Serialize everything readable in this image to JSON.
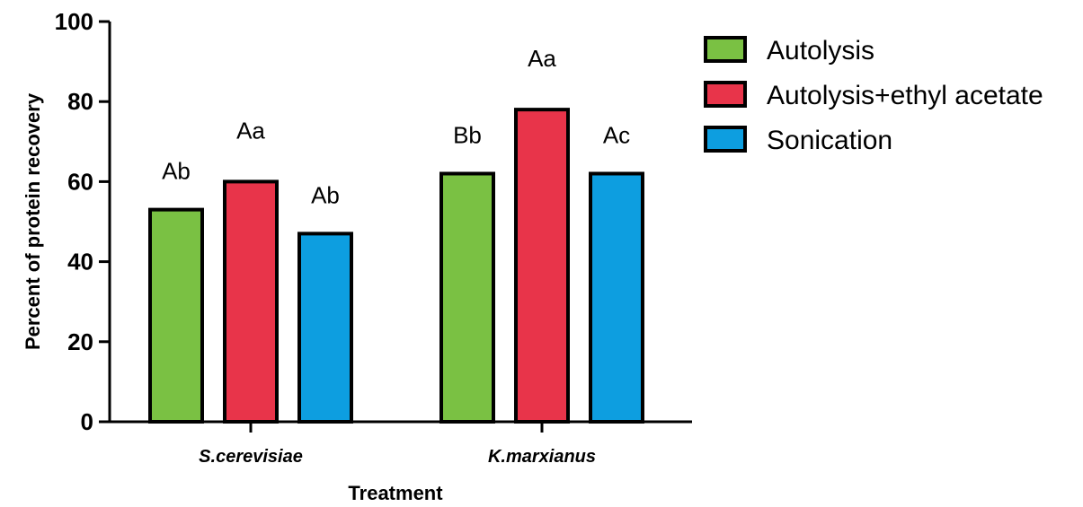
{
  "chart_data": {
    "type": "bar",
    "xlabel": "Treatment",
    "ylabel": "Percent of protein recovery",
    "ylim": [
      0,
      100
    ],
    "yticks": [
      0,
      20,
      40,
      60,
      80,
      100
    ],
    "categories": [
      "S.cerevisiae",
      "K.marxianus"
    ],
    "series": [
      {
        "name": "Autolysis",
        "color": "#7ac143",
        "values": [
          53,
          62
        ],
        "labels": [
          "Ab",
          "Bb"
        ]
      },
      {
        "name": "Autolysis+ethyl acetate",
        "color": "#e8344a",
        "values": [
          60,
          78
        ],
        "labels": [
          "Aa",
          "Aa"
        ]
      },
      {
        "name": "Sonication",
        "color": "#0d9ee0",
        "values": [
          47,
          62
        ],
        "labels": [
          "Ab",
          "Ac"
        ]
      }
    ],
    "legend_position": "top-right",
    "grid": false
  }
}
